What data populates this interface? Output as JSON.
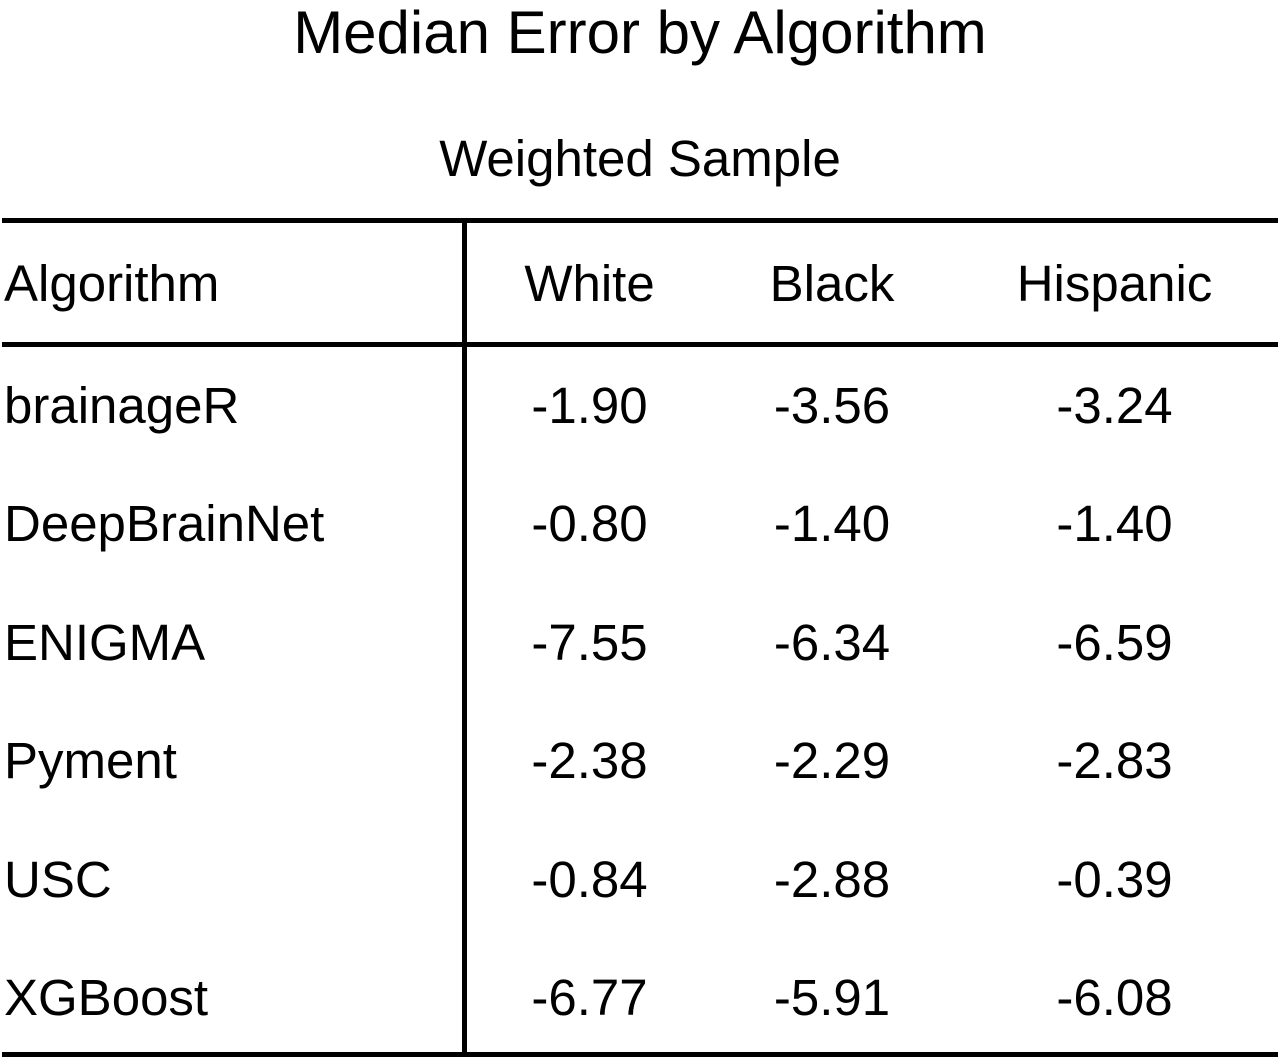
{
  "chart_data": {
    "type": "table",
    "title": "Median Error by Algorithm",
    "subtitle": "Weighted Sample",
    "columns": [
      "Algorithm",
      "White",
      "Black",
      "Hispanic"
    ],
    "rows": [
      [
        "brainageR",
        "-1.90",
        "-3.56",
        "-3.24"
      ],
      [
        "DeepBrainNet",
        "-0.80",
        "-1.40",
        "-1.40"
      ],
      [
        "ENIGMA",
        "-7.55",
        "-6.34",
        "-6.59"
      ],
      [
        "Pyment",
        "-2.38",
        "-2.29",
        "-2.83"
      ],
      [
        "USC",
        "-0.84",
        "-2.88",
        "-0.39"
      ],
      [
        "XGBoost",
        "-6.77",
        "-5.91",
        "-6.08"
      ]
    ]
  }
}
